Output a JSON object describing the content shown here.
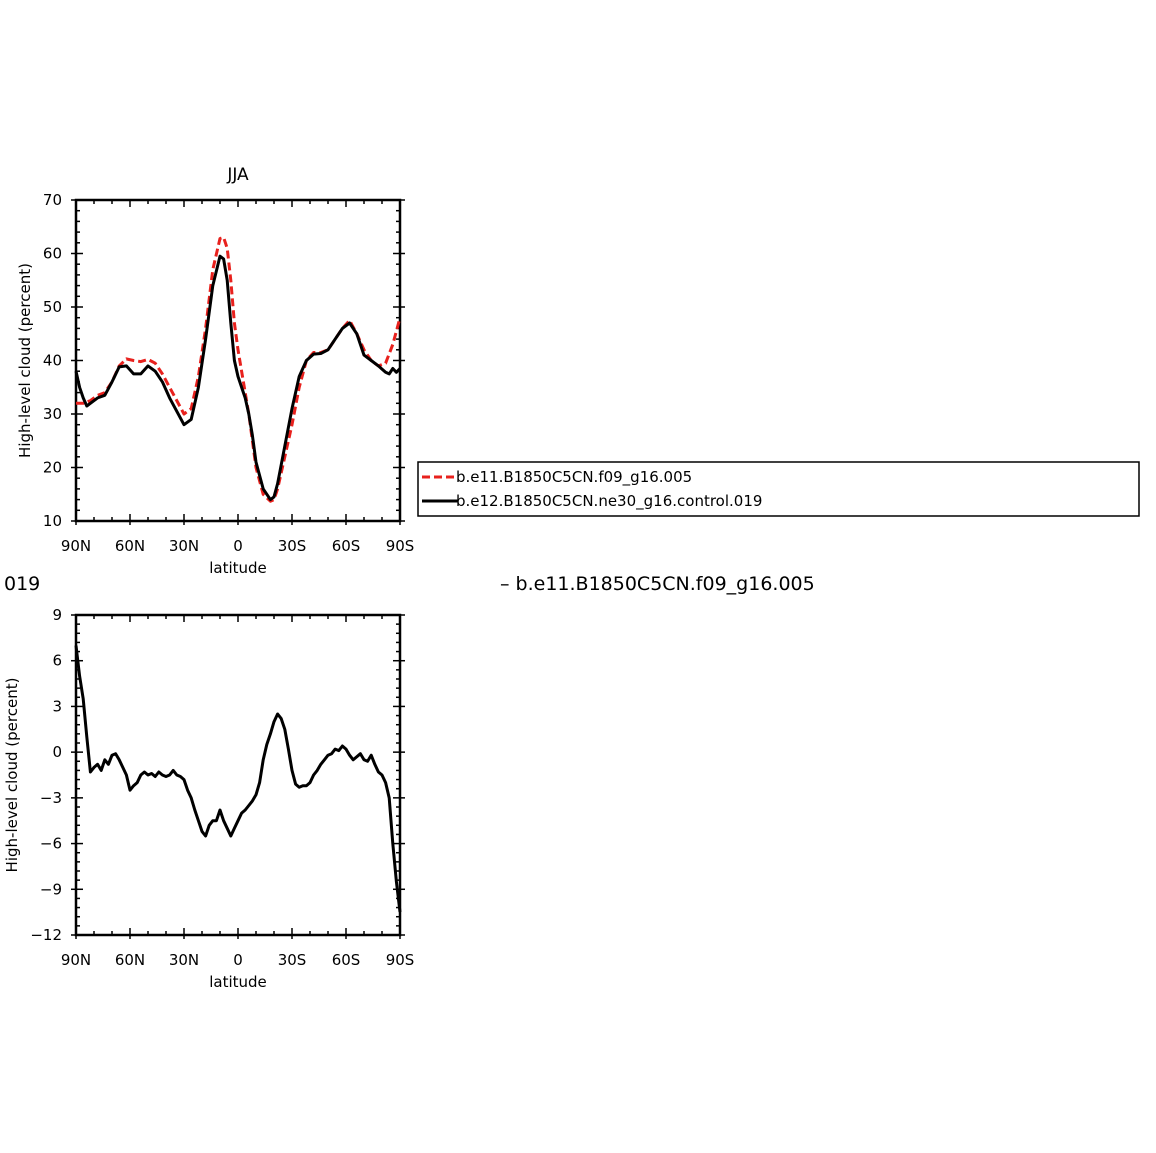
{
  "chart_data": [
    {
      "type": "line",
      "title": "JJA",
      "xlabel": "latitude",
      "ylabel": "High-level cloud (percent)",
      "xticks": [
        "90N",
        "60N",
        "30N",
        "0",
        "30S",
        "60S",
        "90S"
      ],
      "yticks": [
        "10",
        "20",
        "30",
        "40",
        "50",
        "60",
        "70"
      ],
      "xlim": [
        90,
        -90
      ],
      "ylim": [
        10,
        70
      ],
      "x_note": "latitude in degrees, positive = north",
      "series": [
        {
          "name": "b.e11.B1850C5CN.f09_g16.005",
          "color": "#e8211d",
          "dash": "dashed",
          "x": [
            90,
            86,
            82,
            78,
            74,
            70,
            66,
            62,
            58,
            54,
            50,
            46,
            42,
            38,
            34,
            30,
            26,
            22,
            18,
            14,
            10,
            8,
            6,
            4,
            2,
            0,
            -2,
            -4,
            -6,
            -8,
            -10,
            -14,
            -18,
            -20,
            -22,
            -26,
            -30,
            -34,
            -38,
            -42,
            -46,
            -50,
            -54,
            -58,
            -62,
            -66,
            -70,
            -74,
            -78,
            -82,
            -86,
            -90
          ],
          "y": [
            32,
            32,
            32.5,
            33.5,
            34,
            36,
            39,
            40.3,
            40,
            39.8,
            40.2,
            39.5,
            37.5,
            35,
            32.5,
            30,
            31,
            37,
            46,
            57,
            62.8,
            63,
            61,
            55,
            47,
            42,
            38,
            34,
            30,
            25,
            20,
            15,
            13.7,
            14,
            16,
            22,
            28,
            35,
            40,
            41.5,
            41.5,
            42,
            44,
            46,
            47.5,
            45,
            42,
            40,
            39,
            39.5,
            43,
            48
          ]
        },
        {
          "name": "b.e12.B1850C5CN.ne30_g16.control.019",
          "color": "#000000",
          "dash": "solid",
          "x": [
            90,
            88,
            86,
            84,
            82,
            78,
            74,
            70,
            66,
            62,
            58,
            54,
            50,
            46,
            42,
            38,
            34,
            30,
            26,
            22,
            18,
            14,
            10,
            8,
            6,
            4,
            2,
            0,
            -2,
            -4,
            -6,
            -8,
            -10,
            -14,
            -18,
            -20,
            -22,
            -26,
            -30,
            -34,
            -38,
            -42,
            -46,
            -50,
            -54,
            -58,
            -62,
            -66,
            -70,
            -74,
            -78,
            -82,
            -84,
            -86,
            -88,
            -90
          ],
          "y": [
            38,
            35,
            33,
            31.5,
            32,
            33,
            33.5,
            36,
            38.8,
            39,
            37.5,
            37.5,
            39,
            38,
            36,
            33,
            30.5,
            28,
            29,
            35,
            44,
            54,
            59.5,
            59,
            55,
            47,
            40,
            37,
            35,
            33,
            30,
            26,
            21,
            16,
            14,
            14.5,
            17,
            24,
            31,
            37,
            40,
            41.2,
            41.3,
            42,
            44,
            46,
            47,
            45,
            41,
            40,
            39,
            37.8,
            37.5,
            38.5,
            37.8,
            38.5
          ]
        }
      ],
      "legend": {
        "position": "right of plot",
        "entries": [
          "b.e11.B1850C5CN.f09_g16.005",
          "b.e12.B1850C5CN.ne30_g16.control.019"
        ]
      }
    },
    {
      "type": "line",
      "xlabel": "latitude",
      "ylabel": "High-level cloud (percent)",
      "xticks": [
        "90N",
        "60N",
        "30N",
        "0",
        "30S",
        "60S",
        "90S"
      ],
      "yticks": [
        "9",
        "6",
        "3",
        "0",
        "−3",
        "−6",
        "−9",
        "−12"
      ],
      "xlim": [
        90,
        -90
      ],
      "ylim": [
        -12,
        9
      ],
      "title_left_fragment": "019",
      "title_right_fragment": "– b.e11.B1850C5CN.f09_g16.005",
      "series": [
        {
          "color": "#000000",
          "dash": "solid",
          "x": [
            90,
            88,
            86,
            84,
            82,
            80,
            78,
            76,
            74,
            72,
            70,
            68,
            66,
            64,
            62,
            60,
            58,
            56,
            54,
            52,
            50,
            48,
            46,
            44,
            42,
            40,
            38,
            36,
            34,
            32,
            30,
            28,
            26,
            24,
            22,
            20,
            18,
            16,
            14,
            12,
            10,
            8,
            6,
            4,
            2,
            0,
            -2,
            -4,
            -6,
            -8,
            -10,
            -12,
            -14,
            -16,
            -18,
            -20,
            -22,
            -24,
            -26,
            -28,
            -30,
            -32,
            -34,
            -36,
            -38,
            -40,
            -42,
            -44,
            -46,
            -48,
            -50,
            -52,
            -54,
            -56,
            -58,
            -60,
            -62,
            -64,
            -66,
            -68,
            -70,
            -72,
            -74,
            -76,
            -78,
            -80,
            -82,
            -84,
            -86,
            -88,
            -90
          ],
          "y": [
            7,
            5,
            3.5,
            1,
            -1.3,
            -1.0,
            -0.8,
            -1.2,
            -0.5,
            -0.8,
            -0.2,
            -0.1,
            -0.5,
            -1.0,
            -1.5,
            -2.5,
            -2.2,
            -2,
            -1.5,
            -1.3,
            -1.5,
            -1.4,
            -1.6,
            -1.3,
            -1.5,
            -1.6,
            -1.5,
            -1.2,
            -1.5,
            -1.6,
            -1.8,
            -2.5,
            -3,
            -3.8,
            -4.5,
            -5.2,
            -5.5,
            -4.8,
            -4.5,
            -4.5,
            -3.8,
            -4.5,
            -5.0,
            -5.5,
            -5.0,
            -4.5,
            -4.0,
            -3.8,
            -3.5,
            -3.2,
            -2.8,
            -2.0,
            -0.5,
            0.5,
            1.2,
            2.0,
            2.5,
            2.2,
            1.5,
            0.2,
            -1.2,
            -2.1,
            -2.3,
            -2.2,
            -2.2,
            -2.0,
            -1.5,
            -1.2,
            -0.8,
            -0.5,
            -0.2,
            -0.1,
            0.2,
            0.1,
            0.4,
            0.2,
            -0.2,
            -0.5,
            -0.3,
            -0.1,
            -0.5,
            -0.6,
            -0.2,
            -0.8,
            -1.3,
            -1.5,
            -2.0,
            -3.0,
            -6.0,
            -8.5,
            -10.5
          ]
        }
      ]
    }
  ]
}
